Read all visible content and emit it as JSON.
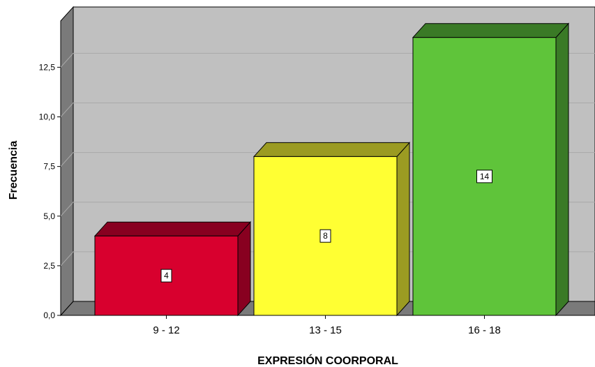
{
  "chart_data": {
    "type": "bar",
    "style": "3d",
    "categories": [
      "9 - 12",
      "13 - 15",
      "16 - 18"
    ],
    "values": [
      4,
      8,
      14
    ],
    "data_labels": [
      "4",
      "8",
      "14"
    ],
    "xlabel": "EXPRESIÓN COORPORAL",
    "ylabel": "Frecuencia",
    "ylim": [
      0,
      14
    ],
    "yticks": [
      0,
      2.5,
      5,
      7.5,
      10,
      12.5
    ],
    "ytick_labels": [
      "0,0",
      "2,5",
      "5,0",
      "7,5",
      "10,0",
      "12,5"
    ],
    "grid": true,
    "legend": "none",
    "colors": {
      "bars": [
        "#d8002e",
        "#ffff33",
        "#5fc43a"
      ],
      "bar_tops": [
        "#880020",
        "#9b9b22",
        "#3a7a26"
      ],
      "bar_sides": [
        "#880020",
        "#9b9b22",
        "#3a7a26"
      ],
      "plot_background": "#c0c0c0",
      "wall": "#7a7a7a",
      "gridline": "#a8a8a8"
    }
  }
}
